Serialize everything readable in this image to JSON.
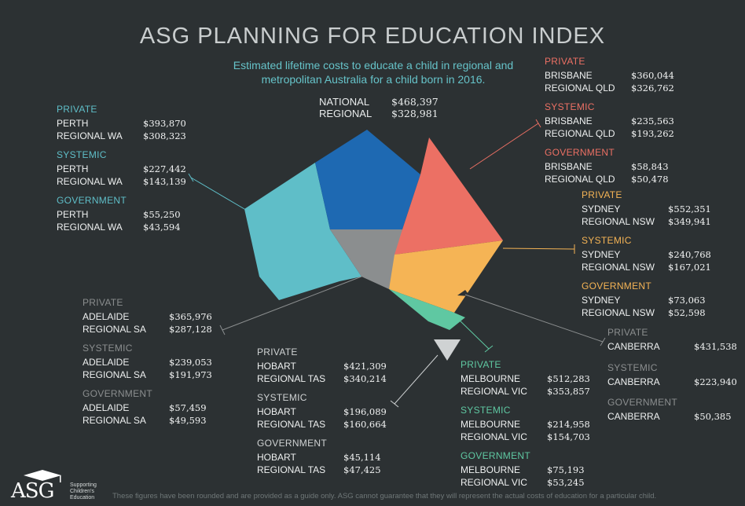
{
  "title": "ASG PLANNING FOR EDUCATION INDEX",
  "subtitle": "Estimated lifetime costs to educate a child in regional and metropolitan Australia for a child born in 2016.",
  "national": {
    "label1": "NATIONAL",
    "value1": "$468,397",
    "label2": "REGIONAL",
    "value2": "$328,981"
  },
  "colors": {
    "wa": "#5fbec8",
    "nt": "#1e69b2",
    "qld": "#ec7064",
    "nsw": "#f5b455",
    "vic": "#5fc8a2",
    "sa": "#8b8e8f",
    "tas": "#cfd2d3",
    "wa_head": "#5fbec8",
    "qld_head": "#ec7064",
    "nsw_head": "#f5b455",
    "vic_head": "#5fc8a2",
    "grey_head": "#8b8e8f"
  },
  "wa": {
    "private": {
      "head": "PRIVATE",
      "l1": "PERTH",
      "v1": "$393,870",
      "l2": "REGIONAL WA",
      "v2": "$308,323"
    },
    "systemic": {
      "head": "SYSTEMIC",
      "l1": "PERTH",
      "v1": "$227,442",
      "l2": "REGIONAL WA",
      "v2": "$143,139"
    },
    "government": {
      "head": "GOVERNMENT",
      "l1": "PERTH",
      "v1": "$55,250",
      "l2": "REGIONAL WA",
      "v2": "$43,594"
    }
  },
  "qld": {
    "private": {
      "head": "PRIVATE",
      "l1": "BRISBANE",
      "v1": "$360,044",
      "l2": "REGIONAL QLD",
      "v2": "$326,762"
    },
    "systemic": {
      "head": "SYSTEMIC",
      "l1": "BRISBANE",
      "v1": "$235,563",
      "l2": "REGIONAL QLD",
      "v2": "$193,262"
    },
    "government": {
      "head": "GOVERNMENT",
      "l1": "BRISBANE",
      "v1": "$58,843",
      "l2": "REGIONAL QLD",
      "v2": "$50,478"
    }
  },
  "nsw": {
    "private": {
      "head": "PRIVATE",
      "l1": "SYDNEY",
      "v1": "$552,351",
      "l2": "REGIONAL NSW",
      "v2": "$349,941"
    },
    "systemic": {
      "head": "SYSTEMIC",
      "l1": "SYDNEY",
      "v1": "$240,768",
      "l2": "REGIONAL NSW",
      "v2": "$167,021"
    },
    "government": {
      "head": "GOVERNMENT",
      "l1": "SYDNEY",
      "v1": "$73,063",
      "l2": "REGIONAL NSW",
      "v2": "$52,598"
    }
  },
  "act": {
    "private": {
      "head": "PRIVATE",
      "l1": "CANBERRA",
      "v1": "$431,538"
    },
    "systemic": {
      "head": "SYSTEMIC",
      "l1": "CANBERRA",
      "v1": "$223,940"
    },
    "government": {
      "head": "GOVERNMENT",
      "l1": "CANBERRA",
      "v1": "$50,385"
    }
  },
  "sa": {
    "private": {
      "head": "PRIVATE",
      "l1": "ADELAIDE",
      "v1": "$365,976",
      "l2": "REGIONAL SA",
      "v2": "$287,128"
    },
    "systemic": {
      "head": "SYSTEMIC",
      "l1": "ADELAIDE",
      "v1": "$239,053",
      "l2": "REGIONAL SA",
      "v2": "$191,973"
    },
    "government": {
      "head": "GOVERNMENT",
      "l1": "ADELAIDE",
      "v1": "$57,459",
      "l2": "REGIONAL SA",
      "v2": "$49,593"
    }
  },
  "tas": {
    "private": {
      "head": "PRIVATE",
      "l1": "HOBART",
      "v1": "$421,309",
      "l2": "REGIONAL TAS",
      "v2": "$340,214"
    },
    "systemic": {
      "head": "SYSTEMIC",
      "l1": "HOBART",
      "v1": "$196,089",
      "l2": "REGIONAL TAS",
      "v2": "$160,664"
    },
    "government": {
      "head": "GOVERNMENT",
      "l1": "HOBART",
      "v1": "$45,114",
      "l2": "REGIONAL TAS",
      "v2": "$47,425"
    }
  },
  "vic": {
    "private": {
      "head": "PRIVATE",
      "l1": "MELBOURNE",
      "v1": "$512,283",
      "l2": "REGIONAL VIC",
      "v2": "$353,857"
    },
    "systemic": {
      "head": "SYSTEMIC",
      "l1": "MELBOURNE",
      "v1": "$214,958",
      "l2": "REGIONAL VIC",
      "v2": "$154,703"
    },
    "government": {
      "head": "GOVERNMENT",
      "l1": "MELBOURNE",
      "v1": "$75,193",
      "l2": "REGIONAL VIC",
      "v2": "$53,245"
    }
  },
  "footer": "These figures have been rounded and are provided as a guide only. ASG cannot guarantee that they will represent the actual costs of education for a particular child.",
  "logo": {
    "text": "ASG",
    "sub1": "Supporting",
    "sub2": "Children's",
    "sub3": "Education"
  }
}
